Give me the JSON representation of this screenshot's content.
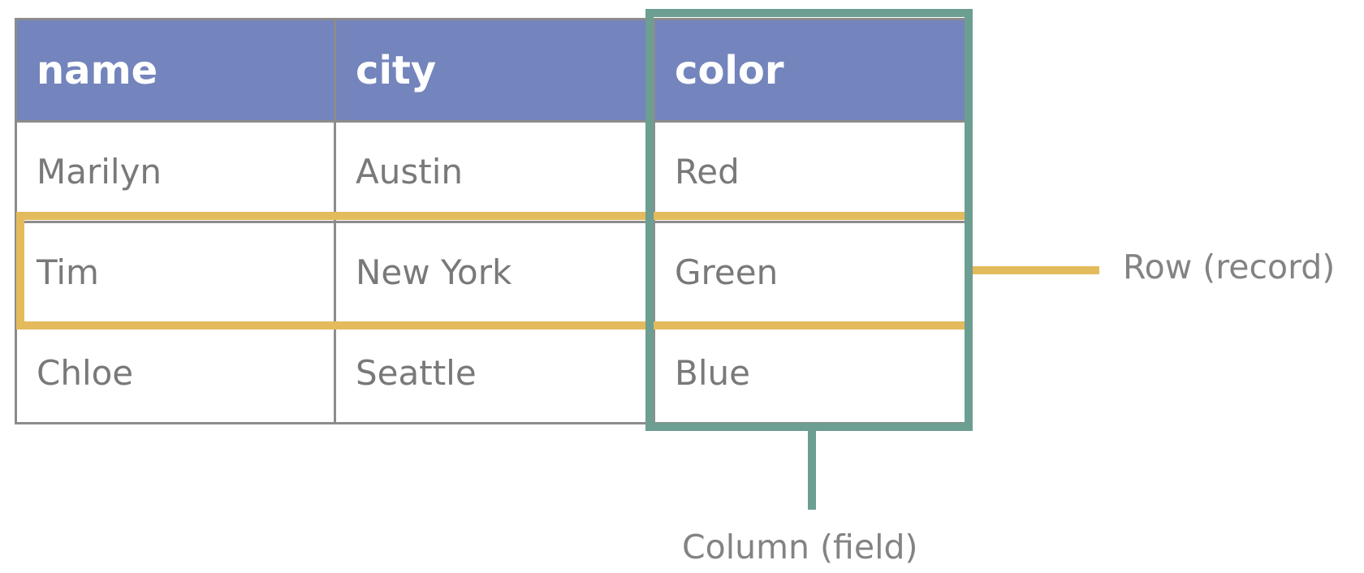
{
  "table": {
    "headers": [
      "name",
      "city",
      "color"
    ],
    "rows": [
      [
        "Marilyn",
        "Austin",
        "Red"
      ],
      [
        "Tim",
        "New York",
        "Green"
      ],
      [
        "Chloe",
        "Seattle",
        "Blue"
      ]
    ]
  },
  "annotations": {
    "row_label": "Row (record)",
    "column_label": "Column (field)"
  },
  "colors": {
    "header_bg": "#7484bc",
    "row_highlight": "#e4bb5c",
    "column_highlight": "#6c9e92",
    "cell_text": "#797979",
    "grid": "#8c8c8c"
  }
}
